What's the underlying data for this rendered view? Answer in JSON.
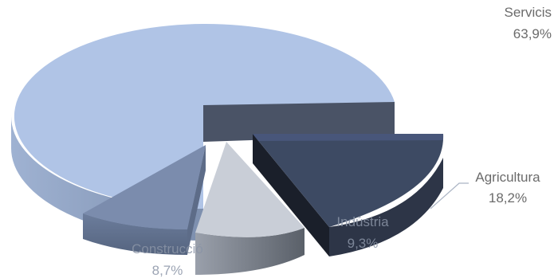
{
  "chart_data": {
    "type": "pie",
    "style": "3d-exploded",
    "unit": "%",
    "title": "",
    "slices": [
      {
        "name": "Servicis",
        "value": 63.9,
        "value_label": "63,9%",
        "color": "#b0c4e6",
        "side_color": "#8fa2c2"
      },
      {
        "name": "Agricultura",
        "value": 18.2,
        "value_label": "18,2%",
        "color": "#3d4a63",
        "side_color": "#232b3a"
      },
      {
        "name": "Indústria",
        "value": 9.3,
        "value_label": "9,3%",
        "color": "#c5cad3",
        "side_color": "#6e7480"
      },
      {
        "name": "Construcció",
        "value": 8.7,
        "value_label": "8,7%",
        "color": "#7b8cad",
        "side_color": "#5e6e8c"
      }
    ]
  }
}
